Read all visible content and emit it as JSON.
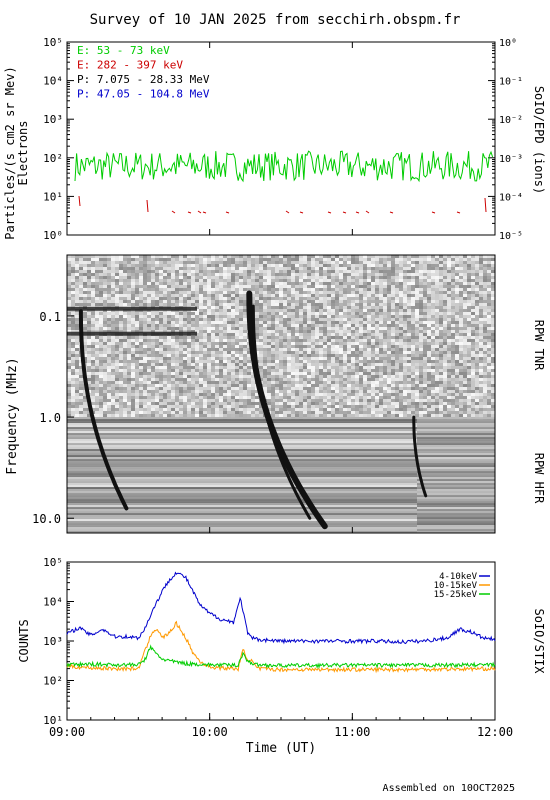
{
  "title": "Survey of 10 JAN 2025 from secchirh.obspm.fr",
  "footer": "Assembled on 10OCT2025",
  "chart_data": [
    {
      "panel": "SoIO/EPD",
      "type": "line",
      "ylabel_lines": [
        "Particles/(s cm2 sr Mev)",
        "Electrons"
      ],
      "right_label": "SoIO/EPD (ions)",
      "y_scale": "log",
      "ylim": [
        1,
        100000
      ],
      "y_ticks": [
        "10⁰",
        "10¹",
        "10²",
        "10³",
        "10⁴",
        "10⁵"
      ],
      "y2_ticks": [
        "10⁻⁵",
        "10⁻⁴",
        "10⁻³",
        "10⁻²",
        "10⁻¹",
        "10⁰"
      ],
      "legend_placement": "top-left",
      "series": [
        {
          "name": "E: 53 - 73 keV",
          "color": "#00cc00",
          "typical_value": 50,
          "range": [
            25,
            150
          ]
        },
        {
          "name": "E: 282 - 397 keV",
          "color": "#cc0000",
          "typical_value": 2,
          "note_sparse": true
        },
        {
          "name": "P: 7.075 - 28.33 MeV",
          "color": "#000000"
        },
        {
          "name": "P: 47.05 - 104.8 MeV",
          "color": "#0000cc"
        }
      ]
    },
    {
      "panel": "RPW TNR / RPW HFR",
      "type": "heatmap",
      "ylabel": "Frequency (MHz)",
      "y_scale": "log",
      "y_inverted": true,
      "y_ticks": [
        "0.1",
        "1.0",
        "10.0"
      ],
      "right_labels": [
        "RPW TNR",
        "RPW HFR"
      ],
      "bursts": [
        {
          "start": "09:05",
          "end": "09:25"
        },
        {
          "start": "10:15",
          "end": "10:40"
        },
        {
          "start": "11:25",
          "end": "11:30"
        }
      ]
    },
    {
      "panel": "SoIO/STIX",
      "type": "line",
      "ylabel": "COUNTS",
      "right_label": "SoIO/STIX",
      "xlabel": "Time (UT)",
      "x_ticks": [
        "09:00",
        "10:00",
        "11:00",
        "12:00"
      ],
      "y_scale": "log",
      "ylim": [
        10,
        100000
      ],
      "y_ticks": [
        "10¹",
        "10²",
        "10³",
        "10⁴",
        "10⁵"
      ],
      "legend_placement": "top-right",
      "series": [
        {
          "name": "4-10keV",
          "color": "#0000cc",
          "x": [
            "09:00",
            "09:05",
            "09:10",
            "09:15",
            "09:20",
            "09:25",
            "09:30",
            "09:33",
            "09:36",
            "09:40",
            "09:43",
            "09:46",
            "09:50",
            "09:53",
            "09:56",
            "10:00",
            "10:05",
            "10:10",
            "10:12",
            "10:13",
            "10:14",
            "10:16",
            "10:18",
            "10:20",
            "10:25",
            "10:30",
            "10:40",
            "10:50",
            "11:00",
            "11:10",
            "11:20",
            "11:30",
            "11:40",
            "11:45",
            "11:50",
            "11:55",
            "12:00"
          ],
          "values": [
            1500,
            2200,
            1400,
            2000,
            1300,
            1300,
            1200,
            2200,
            6000,
            18000,
            35000,
            55000,
            40000,
            18000,
            8000,
            5000,
            3500,
            3000,
            8000,
            12000,
            6000,
            1500,
            1200,
            1100,
            1050,
            1000,
            1000,
            1000,
            1000,
            1000,
            950,
            1000,
            1200,
            2000,
            1700,
            1200,
            1100
          ]
        },
        {
          "name": "10-15keV",
          "color": "#ff9900",
          "x": [
            "09:00",
            "09:10",
            "09:20",
            "09:30",
            "09:33",
            "09:36",
            "09:38",
            "09:40",
            "09:43",
            "09:46",
            "09:50",
            "09:53",
            "09:56",
            "10:00",
            "10:10",
            "10:12",
            "10:14",
            "10:16",
            "10:18",
            "10:20",
            "10:30",
            "10:40",
            "11:00",
            "11:20",
            "11:40",
            "12:00"
          ],
          "values": [
            230,
            210,
            200,
            200,
            600,
            1800,
            2000,
            1200,
            1600,
            2800,
            1200,
            500,
            300,
            220,
            200,
            200,
            600,
            350,
            300,
            200,
            190,
            190,
            190,
            190,
            195,
            200
          ]
        },
        {
          "name": "15-25keV",
          "color": "#00cc00",
          "x": [
            "09:00",
            "09:10",
            "09:20",
            "09:30",
            "09:33",
            "09:35",
            "09:38",
            "09:40",
            "09:45",
            "09:50",
            "10:00",
            "10:10",
            "10:12",
            "10:14",
            "10:16",
            "10:20",
            "10:30",
            "11:00",
            "11:30",
            "12:00"
          ],
          "values": [
            250,
            260,
            250,
            250,
            350,
            700,
            450,
            350,
            300,
            270,
            250,
            245,
            250,
            500,
            300,
            250,
            240,
            245,
            245,
            250
          ]
        }
      ]
    }
  ]
}
